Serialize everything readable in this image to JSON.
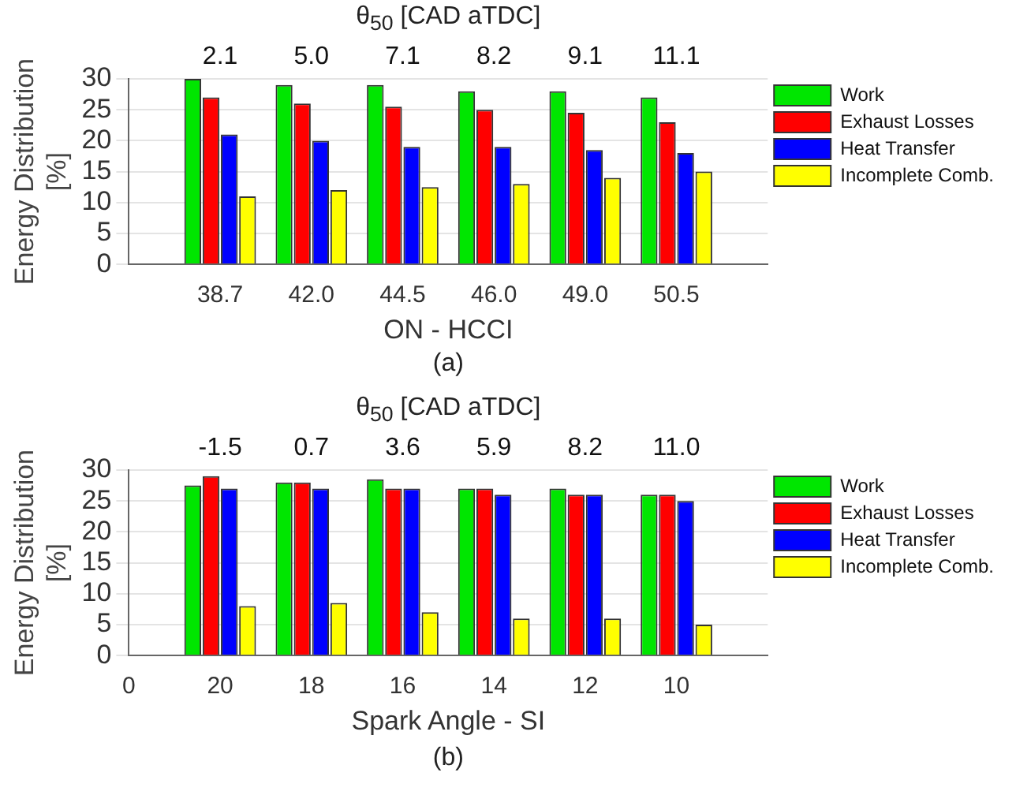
{
  "chart_data": [
    {
      "type": "bar",
      "categories": [
        null,
        "38.7",
        "42.0",
        "44.5",
        "46.0",
        "49.0",
        "50.5",
        null
      ],
      "x2label": "θ$_{50}$ [CAD aTDC]",
      "xlabel": "ON - HCCI",
      "ylabel": "Energy Distribution [%]",
      "ylim": [
        0,
        30
      ],
      "yticks": [
        0,
        5,
        10,
        15,
        20,
        25,
        30
      ],
      "grid": "y",
      "legend": "top right",
      "annotations": [
        "2.1",
        "5.0",
        "7.1",
        "8.2",
        "9.1",
        "11.1",
        "(a)"
      ],
      "series": [
        {
          "name": "Work",
          "color": "#00e600",
          "values": [
            null,
            30,
            29,
            29,
            28,
            28,
            27,
            null
          ]
        },
        {
          "name": "Exhaust Losses",
          "color": "#ff0000",
          "values": [
            null,
            27,
            26,
            25.5,
            25,
            24.5,
            23,
            null
          ]
        },
        {
          "name": "Heat Transfer",
          "color": "#0000ff",
          "values": [
            null,
            21,
            20,
            19,
            19,
            18.5,
            18,
            null
          ]
        },
        {
          "name": "Incomplete Comb.",
          "color": "#ffff00",
          "values": [
            null,
            11,
            12,
            12.5,
            13,
            14,
            15,
            null
          ]
        }
      ]
    },
    {
      "type": "bar",
      "categories": [
        "0",
        "20",
        "18",
        "16",
        "14",
        "12",
        "10",
        null
      ],
      "x2label": "θ$_{50}$ [CAD aTDC]",
      "xlabel": "Spark Angle - SI",
      "ylabel": "Energy Distribution [%]",
      "ylim": [
        0,
        30
      ],
      "yticks": [
        0,
        5,
        10,
        15,
        20,
        25,
        30
      ],
      "grid": "y",
      "legend": "top right",
      "annotations": [
        "-1.5",
        "0.7",
        "3.6",
        "5.9",
        "8.2",
        "11.0",
        "(b)"
      ],
      "series": [
        {
          "name": "Work",
          "color": "#00e600",
          "values": [
            null,
            27.5,
            28,
            28.5,
            27,
            27,
            26,
            null
          ]
        },
        {
          "name": "Exhaust Losses",
          "color": "#ff0000",
          "values": [
            null,
            29,
            28,
            27,
            27,
            26,
            26,
            null
          ]
        },
        {
          "name": "Heat Transfer",
          "color": "#0000ff",
          "values": [
            null,
            27,
            27,
            27,
            26,
            26,
            25,
            null
          ]
        },
        {
          "name": "Incomplete Comb.",
          "color": "#ffff00",
          "values": [
            null,
            8,
            8.5,
            7,
            6,
            6,
            5,
            null
          ]
        }
      ]
    }
  ]
}
